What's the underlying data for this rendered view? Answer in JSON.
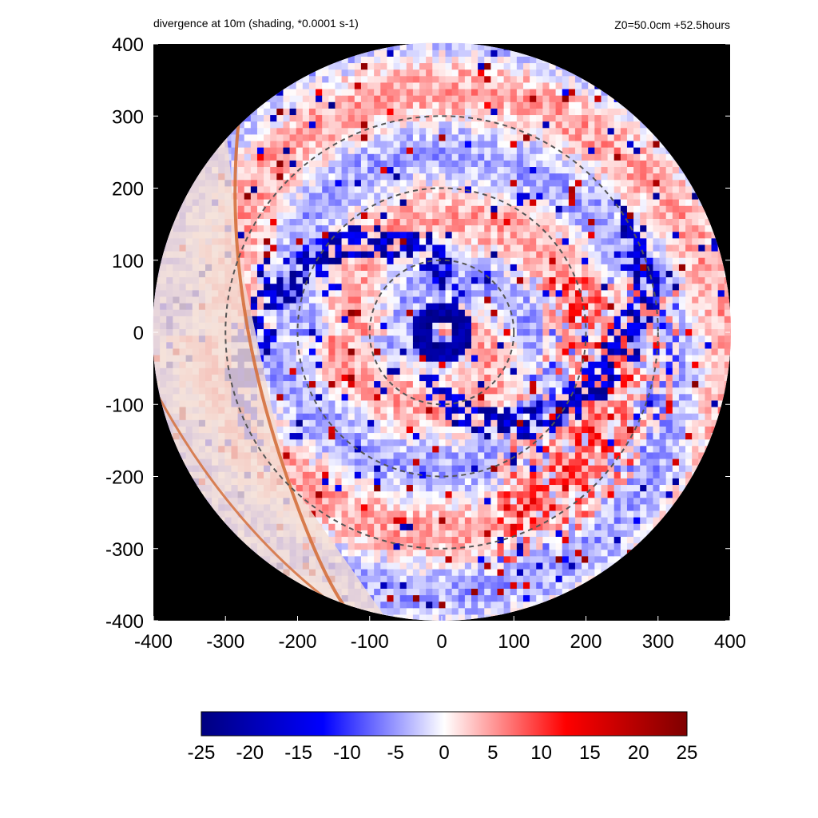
{
  "chart_data": {
    "type": "heatmap",
    "title_left": "divergence at 10m (shading, *0.0001 s-1)",
    "title_right": "Z0=50.0cm  +52.5hours",
    "xlim": [
      -400,
      400
    ],
    "ylim": [
      -400,
      400
    ],
    "xticks": [
      -400,
      -300,
      -200,
      -100,
      0,
      100,
      200,
      300,
      400
    ],
    "yticks": [
      -400,
      -300,
      -200,
      -100,
      0,
      100,
      200,
      300,
      400
    ],
    "domain_radius": 400,
    "reference_circles_radius": [
      100,
      200,
      300
    ],
    "eye_ring_radius": 30,
    "background_outside_domain": "#000000",
    "colorbar": {
      "min": -25,
      "max": 25,
      "ticks": [
        -25,
        -20,
        -15,
        -10,
        -5,
        0,
        5,
        10,
        15,
        20,
        25
      ],
      "colors": [
        "#00007f",
        "#0000ff",
        "#ffffff",
        "#ff0000",
        "#7f0000"
      ]
    }
  }
}
